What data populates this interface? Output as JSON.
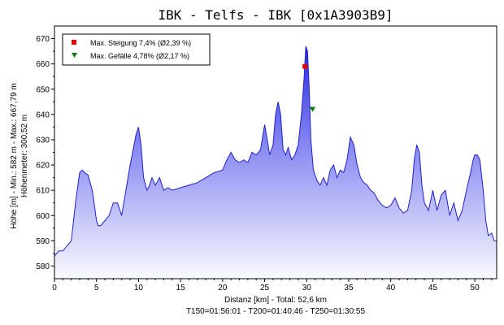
{
  "chart_data": {
    "type": "area",
    "title": "IBK - Telfs - IBK [0x1A3903B9]",
    "xlabel": "Distanz [km] - Total: 52,6 km",
    "xlabel2": "T150=01:56:01 - T200=01:40:46 - T250=01:30:55",
    "ylabel": "Höhe [m] - Min.: 582 m - Max.: 667,79 m",
    "ylabel2": "Höhenmeter: 300,52 m",
    "xlim": [
      0,
      52.6
    ],
    "ylim": [
      575,
      675
    ],
    "xticks": [
      "0",
      "5",
      "10",
      "15",
      "20",
      "25",
      "30",
      "35",
      "40",
      "45",
      "50"
    ],
    "yticks": [
      "580",
      "590",
      "600",
      "610",
      "620",
      "630",
      "640",
      "650",
      "660",
      "670"
    ],
    "grid": false,
    "legend_position": "top-left",
    "colors": {
      "line": "#2020d0",
      "fill_top": "#3838e0",
      "fill_bottom": "#f0f0ff",
      "rise_marker": "#e00000",
      "fall_marker": "#008000"
    },
    "legend": [
      {
        "label": "Max. Steigung 7,4% (Ø2,39 %)",
        "marker": "square",
        "color": "#e00000"
      },
      {
        "label": "Max. Gefälle 4,78% (Ø2,17 %)",
        "marker": "triangle-down",
        "color": "#008000"
      }
    ],
    "markers": [
      {
        "name": "Max. Steigung",
        "x": 29.8,
        "y": 659
      },
      {
        "name": "Max. Gefälle",
        "x": 30.7,
        "y": 642
      }
    ],
    "series": [
      {
        "x": [
          0,
          0.5,
          1,
          1.5,
          2,
          2.5,
          3,
          3.3,
          3.6,
          4,
          4.5,
          4.8,
          5,
          5.2,
          5.5,
          6,
          6.5,
          7,
          7.5,
          8,
          8.5,
          9,
          9.3,
          9.7,
          10,
          10.3,
          10.6,
          11,
          11.3,
          11.6,
          12,
          12.5,
          13,
          13.5,
          14,
          15,
          16,
          17,
          18,
          19,
          20,
          20.5,
          21,
          21.5,
          22,
          22.5,
          23,
          23.5,
          24,
          24.5,
          25,
          25.3,
          25.6,
          26,
          26.3,
          26.6,
          26.9,
          27.2,
          27.5,
          27.8,
          28.2,
          28.6,
          29,
          29.4,
          29.7,
          29.9,
          30.1,
          30.3,
          30.5,
          30.8,
          31.2,
          31.6,
          32,
          32.4,
          32.8,
          33.2,
          33.6,
          34,
          34.4,
          34.8,
          35.2,
          35.6,
          36,
          36.4,
          36.8,
          37.2,
          37.6,
          38,
          38.5,
          39,
          39.5,
          40,
          40.5,
          41,
          41.5,
          42,
          42.5,
          42.8,
          43.1,
          43.4,
          43.7,
          44,
          44.5,
          45,
          45.5,
          46,
          46.5,
          47,
          47.5,
          48,
          48.5,
          49,
          49.5,
          49.8,
          50,
          50.3,
          50.6,
          51,
          51.3,
          51.6,
          52,
          52.3,
          52.6
        ],
        "values": [
          584,
          586,
          586,
          588,
          590,
          605,
          617,
          618,
          617,
          616,
          610,
          603,
          598,
          596,
          596,
          598,
          600,
          605,
          605,
          600,
          610,
          620,
          625,
          632,
          635,
          628,
          615,
          610,
          612,
          615,
          612,
          615,
          610,
          611,
          610,
          611,
          612,
          613,
          615,
          617,
          618,
          622,
          625,
          622,
          621,
          622,
          621,
          625,
          624,
          626,
          636,
          630,
          624,
          628,
          640,
          645,
          640,
          626,
          624,
          627,
          622,
          624,
          628,
          641,
          655,
          667,
          665,
          650,
          630,
          618,
          614,
          612,
          615,
          612,
          618,
          620,
          615,
          618,
          617,
          622,
          631,
          628,
          620,
          615,
          613,
          612,
          610,
          609,
          606,
          604,
          603,
          604,
          607,
          603,
          601,
          602,
          610,
          622,
          628,
          625,
          612,
          605,
          602,
          610,
          602,
          608,
          610,
          600,
          605,
          598,
          602,
          610,
          617,
          622,
          624,
          624,
          622,
          610,
          598,
          592,
          593,
          590,
          590
        ]
      }
    ]
  }
}
